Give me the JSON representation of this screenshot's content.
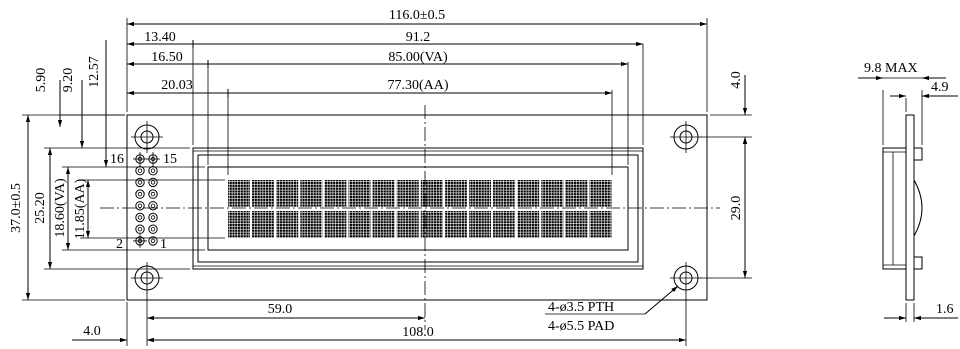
{
  "dimensions": {
    "overall_width": "116.0±0.5",
    "offset_left": "13.40",
    "va_left": "16.50",
    "aa_left": "20.03",
    "board_width": "91.2",
    "va_width": "85.00(VA)",
    "aa_width": "77.30(AA)",
    "v_590": "5.90",
    "v_920": "9.20",
    "v_1257": "12.57",
    "top_offset": "4.0",
    "overall_height": "37.0±0.5",
    "v_2520": "25.20",
    "va_height": "18.60(VA)",
    "aa_height": "11.85(AA)",
    "hole_pitch_v": "29.0",
    "center_x": "59.0",
    "hole_pitch_h": "108.0",
    "hole_offset": "4.0",
    "pin_16": "16",
    "pin_15": "15",
    "pin_2": "2",
    "pin_1": "1"
  },
  "notes": {
    "pth": "4-ø3.5 PTH",
    "pad": "4-ø5.5 PAD"
  },
  "side_view": {
    "max_thickness": "9.8 MAX",
    "depth": "4.9",
    "pcb": "1.6"
  }
}
